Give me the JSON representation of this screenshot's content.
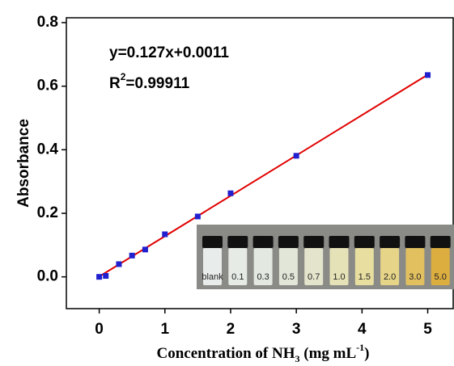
{
  "chart_data": {
    "type": "scatter",
    "x_label": [
      "Concentration of NH",
      "3",
      " (mg mL",
      "-1",
      ")"
    ],
    "y_label": "Absorbance",
    "x": [
      0,
      0.1,
      0.3,
      0.5,
      0.7,
      1.0,
      1.5,
      2.0,
      3.0,
      5.0
    ],
    "series": [
      {
        "color": "#2020d0",
        "values": [
          0.0,
          0.003,
          0.04,
          0.067,
          0.086,
          0.134,
          0.19,
          0.263,
          0.381,
          0.635
        ]
      }
    ],
    "fit": {
      "slope": 0.127,
      "intercept": 0.0011,
      "color": "#e00000"
    },
    "annotations": [
      "y=0.127x+0.0011",
      "R",
      "2",
      "=0.99911"
    ],
    "inset_labels": [
      "blank",
      "0.1",
      "0.3",
      "0.5",
      "0.7",
      "1.0",
      "1.5",
      "2.0",
      "3.0",
      "5.0"
    ],
    "xlim": [
      -0.5,
      5.4
    ],
    "ylim": [
      -0.1,
      0.8
    ],
    "xticks": [
      0,
      1,
      2,
      3,
      4,
      5
    ],
    "yticks": [
      {
        "value": 0,
        "label": "0.0"
      },
      0.2,
      0.4,
      0.6,
      0.8
    ]
  }
}
